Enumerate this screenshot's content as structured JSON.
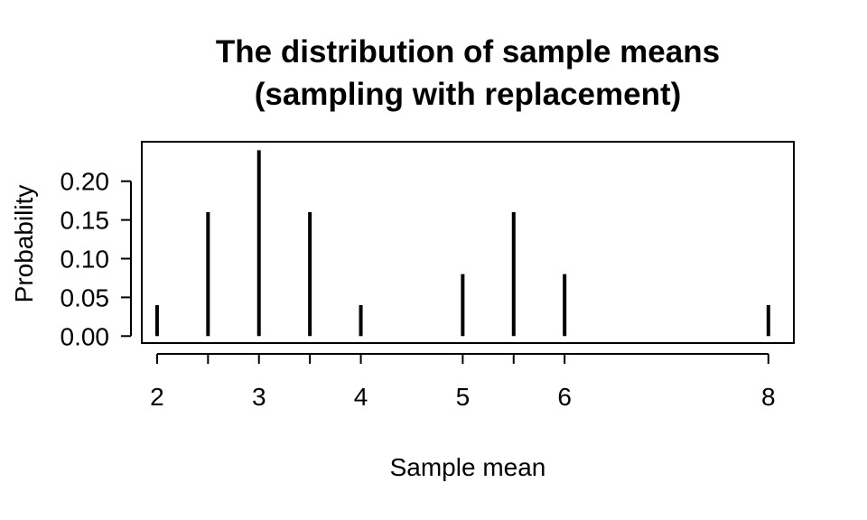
{
  "chart_data": {
    "type": "bar",
    "title": [
      "The distribution of sample means",
      "(sampling with replacement)"
    ],
    "xlabel": "Sample mean",
    "ylabel": "Probability",
    "x": [
      2,
      2.5,
      3,
      3.5,
      4,
      5,
      5.5,
      6,
      8
    ],
    "values": [
      0.04,
      0.16,
      0.24,
      0.16,
      0.04,
      0.08,
      0.16,
      0.08,
      0.04
    ],
    "x_ticks": [
      2,
      2.5,
      3,
      3.5,
      4,
      5,
      5.5,
      6,
      8
    ],
    "x_tick_labels": [
      "2",
      "",
      "3",
      "",
      "4",
      "5",
      "",
      "6",
      "8"
    ],
    "y_ticks": [
      0,
      0.05,
      0.1,
      0.15,
      0.2
    ],
    "y_tick_labels": [
      "0.00",
      "0.05",
      "0.10",
      "0.15",
      "0.20"
    ],
    "xlim": [
      1.85,
      8.25
    ],
    "ylim": [
      -0.009,
      0.251
    ],
    "grid": false,
    "bar_color": "#000000"
  }
}
